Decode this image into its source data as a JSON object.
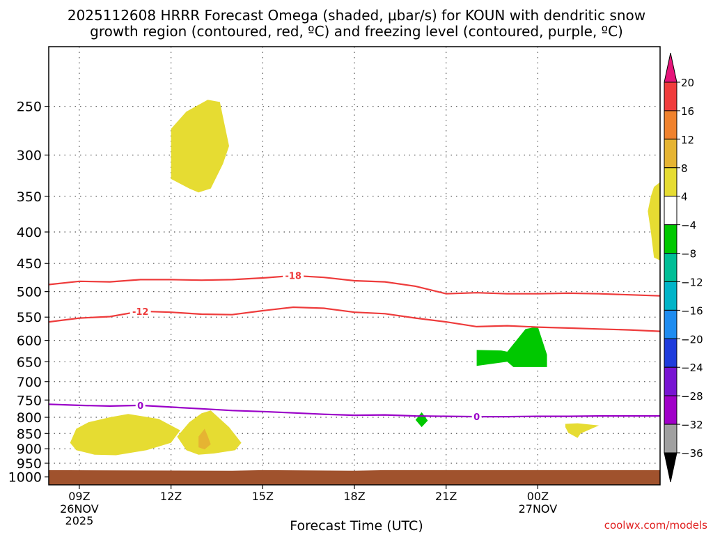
{
  "title_lines": [
    "2025112608 HRRR Forecast Omega (shaded, μbar/s) for KOUN with dendritic snow",
    "growth region (contoured, red, ºC) and freezing level (contoured, purple, ºC)"
  ],
  "credit": "coolwx.com/models",
  "chart_data": {
    "type": "time-height cross section (filled contour)",
    "title": "2025112608 HRRR Forecast Omega (shaded, μbar/s) for KOUN with dendritic snow growth region (contoured, red, ºC) and freezing level (contoured, purple, ºC)",
    "xlabel": "Forecast Time (UTC)",
    "ylabel": "",
    "x_unit": "forecast hour from 2025-11-26 08Z",
    "xlim": [
      0,
      20
    ],
    "x_ticks": [
      {
        "hour": 1,
        "label": "09Z",
        "sub": [
          "26NOV",
          "2025"
        ]
      },
      {
        "hour": 4,
        "label": "12Z",
        "sub": []
      },
      {
        "hour": 7,
        "label": "15Z",
        "sub": []
      },
      {
        "hour": 10,
        "label": "18Z",
        "sub": []
      },
      {
        "hour": 13,
        "label": "21Z",
        "sub": []
      },
      {
        "hour": 16,
        "label": "00Z",
        "sub": [
          "27NOV"
        ]
      }
    ],
    "y_unit": "hPa",
    "ylim": [
      1030,
      200
    ],
    "y_ticks": [
      250,
      300,
      350,
      400,
      450,
      500,
      550,
      600,
      650,
      700,
      750,
      800,
      850,
      900,
      950,
      1000
    ],
    "grid": true,
    "ground_color": "#a0522d",
    "ground_level": [
      [
        0,
        975
      ],
      [
        6,
        977
      ],
      [
        7,
        975
      ],
      [
        10,
        977
      ],
      [
        11,
        975
      ],
      [
        20,
        975
      ]
    ],
    "colorbar": {
      "labels": [
        "20",
        "16",
        "12",
        "8",
        "4",
        "−4",
        "−8",
        "−12",
        "−16",
        "−20",
        "−24",
        "−28",
        "−32",
        "−36"
      ],
      "levels": [
        20,
        16,
        12,
        8,
        4,
        -4,
        -8,
        -12,
        -16,
        -20,
        -24,
        -28,
        -32,
        -36
      ],
      "top_color": "#e6147a",
      "bin_colors": [
        "#f03c3c",
        "#f0822d",
        "#e6b432",
        "#e6dc32",
        "#ffffff",
        "#00c800",
        "#00be96",
        "#00b4c8",
        "#1e8cf0",
        "#1e3cdc",
        "#7814d2",
        "#a000c8",
        "#a0a0a0"
      ],
      "bottom_color": "#000000"
    },
    "contours": [
      {
        "name": "-18",
        "color": "#ee3b3b",
        "points": [
          [
            0,
            487
          ],
          [
            1,
            481
          ],
          [
            2,
            482
          ],
          [
            3,
            478
          ],
          [
            4,
            478
          ],
          [
            5,
            479
          ],
          [
            6,
            478
          ],
          [
            7,
            475
          ],
          [
            8,
            471
          ],
          [
            9,
            474
          ],
          [
            10,
            480
          ],
          [
            11,
            482
          ],
          [
            12,
            490
          ],
          [
            13,
            504
          ],
          [
            14,
            502
          ],
          [
            15,
            504
          ],
          [
            16,
            504
          ],
          [
            17,
            503
          ],
          [
            18,
            504
          ],
          [
            19,
            506
          ],
          [
            20,
            508
          ]
        ],
        "label_at_hour": 8
      },
      {
        "name": "-12",
        "color": "#ee3b3b",
        "points": [
          [
            0,
            560
          ],
          [
            1,
            552
          ],
          [
            2,
            549
          ],
          [
            3,
            538
          ],
          [
            4,
            540
          ],
          [
            5,
            544
          ],
          [
            6,
            545
          ],
          [
            7,
            537
          ],
          [
            8,
            530
          ],
          [
            9,
            532
          ],
          [
            10,
            540
          ],
          [
            11,
            543
          ],
          [
            12,
            552
          ],
          [
            13,
            560
          ],
          [
            14,
            570
          ],
          [
            15,
            568
          ],
          [
            16,
            571
          ],
          [
            17,
            573
          ],
          [
            18,
            575
          ],
          [
            19,
            577
          ],
          [
            20,
            580
          ]
        ],
        "label_at_hour": 3
      },
      {
        "name": "0",
        "color": "#9a00c8",
        "points": [
          [
            0,
            762
          ],
          [
            1,
            765
          ],
          [
            2,
            767
          ],
          [
            3,
            765
          ],
          [
            4,
            770
          ],
          [
            5,
            775
          ],
          [
            6,
            780
          ],
          [
            7,
            783
          ],
          [
            8,
            787
          ],
          [
            9,
            791
          ],
          [
            10,
            794
          ],
          [
            11,
            793
          ],
          [
            12,
            796
          ],
          [
            13,
            797
          ],
          [
            14,
            798
          ],
          [
            15,
            798
          ],
          [
            16,
            797
          ],
          [
            17,
            797
          ],
          [
            18,
            796
          ],
          [
            19,
            796
          ],
          [
            20,
            796
          ]
        ],
        "label_positions": [
          3,
          14
        ]
      }
    ],
    "shaded_areas": [
      {
        "level": "4 to 8",
        "color": "#e6dc32",
        "points": [
          [
            4,
            272
          ],
          [
            4.5,
            255
          ],
          [
            5.2,
            244
          ],
          [
            5.6,
            246
          ],
          [
            5.7,
            260
          ],
          [
            5.9,
            290
          ],
          [
            5.7,
            310
          ],
          [
            5.3,
            340
          ],
          [
            4.9,
            345
          ],
          [
            4.6,
            340
          ],
          [
            4,
            328
          ],
          [
            4,
            300
          ]
        ]
      },
      {
        "level": "4 to 8",
        "color": "#e6dc32",
        "points": [
          [
            19.8,
            338
          ],
          [
            20,
            332
          ],
          [
            20,
            445
          ],
          [
            19.8,
            440
          ],
          [
            19.7,
            400
          ],
          [
            19.6,
            370
          ],
          [
            19.7,
            350
          ]
        ]
      },
      {
        "level": "4 to 8",
        "color": "#e6dc32",
        "points": [
          [
            0.7,
            880
          ],
          [
            0.9,
            835
          ],
          [
            1.3,
            815
          ],
          [
            2,
            800
          ],
          [
            2.6,
            790
          ],
          [
            3.6,
            805
          ],
          [
            4.3,
            840
          ],
          [
            4,
            880
          ],
          [
            3.2,
            905
          ],
          [
            2.2,
            922
          ],
          [
            1.5,
            920
          ],
          [
            0.9,
            905
          ]
        ]
      },
      {
        "level": "4 to 8",
        "color": "#e6dc32",
        "points": [
          [
            4.2,
            860
          ],
          [
            4.6,
            815
          ],
          [
            5,
            788
          ],
          [
            5.3,
            780
          ],
          [
            5.9,
            830
          ],
          [
            6.3,
            880
          ],
          [
            6.1,
            905
          ],
          [
            5.4,
            916
          ],
          [
            4.9,
            920
          ],
          [
            4.5,
            905
          ]
        ]
      },
      {
        "level": "8 to 12",
        "color": "#e6b432",
        "points": [
          [
            5.1,
            835
          ],
          [
            5.2,
            858
          ],
          [
            5.3,
            885
          ],
          [
            5.1,
            902
          ],
          [
            4.9,
            895
          ],
          [
            4.9,
            860
          ]
        ]
      },
      {
        "level": "4 to 8",
        "color": "#e6dc32",
        "points": [
          [
            16.9,
            820
          ],
          [
            17.3,
            818
          ],
          [
            18,
            825
          ],
          [
            17.4,
            850
          ],
          [
            17.3,
            864
          ],
          [
            17,
            848
          ],
          [
            16.9,
            830
          ]
        ]
      },
      {
        "level": "-8 to -4",
        "color": "#00c800",
        "points": [
          [
            14,
            622
          ],
          [
            14.8,
            623
          ],
          [
            15,
            626
          ],
          [
            15.6,
            575
          ],
          [
            16,
            570
          ],
          [
            16.3,
            633
          ],
          [
            16.3,
            663
          ],
          [
            15.2,
            663
          ],
          [
            15,
            650
          ],
          [
            14,
            660
          ]
        ]
      },
      {
        "level": "-8 to -4",
        "color": "#00c800",
        "points": [
          [
            12,
            808
          ],
          [
            12.2,
            785
          ],
          [
            12.4,
            810
          ],
          [
            12.2,
            830
          ]
        ]
      }
    ]
  }
}
